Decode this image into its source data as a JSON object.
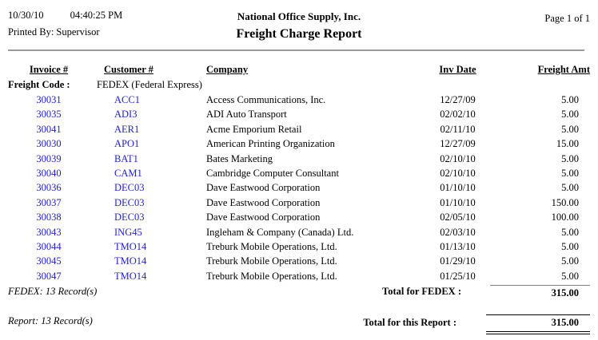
{
  "header": {
    "date": "10/30/10",
    "time": "04:40:25 PM",
    "printed_by": "Printed By: Supervisor",
    "company": "National Office Supply, Inc.",
    "title": "Freight Charge Report",
    "page": "Page 1 of 1"
  },
  "table": {
    "columns": {
      "invoice": "Invoice #",
      "customer": "Customer #",
      "company": "Company",
      "inv_date": "Inv Date",
      "freight_amt": "Freight Amt"
    },
    "group_label": "Freight Code :",
    "group_value": "FEDEX (Federal Express)",
    "rows": [
      {
        "invoice": "30031",
        "customer": "ACC1",
        "company": "Access Communications, Inc.",
        "inv_date": "12/27/09",
        "freight_amt": "5.00"
      },
      {
        "invoice": "30035",
        "customer": "ADI3",
        "company": "ADI Auto Transport",
        "inv_date": "02/02/10",
        "freight_amt": "5.00"
      },
      {
        "invoice": "30041",
        "customer": "AER1",
        "company": "Acme Emporium Retail",
        "inv_date": "02/11/10",
        "freight_amt": "5.00"
      },
      {
        "invoice": "30030",
        "customer": "APO1",
        "company": "American Printing Organization",
        "inv_date": "12/27/09",
        "freight_amt": "15.00"
      },
      {
        "invoice": "30039",
        "customer": "BAT1",
        "company": "Bates Marketing",
        "inv_date": "02/10/10",
        "freight_amt": "5.00"
      },
      {
        "invoice": "30040",
        "customer": "CAM1",
        "company": "Cambridge Computer Consultant",
        "inv_date": "02/10/10",
        "freight_amt": "5.00"
      },
      {
        "invoice": "30036",
        "customer": "DEC03",
        "company": "Dave Eastwood Corporation",
        "inv_date": "01/10/10",
        "freight_amt": "5.00"
      },
      {
        "invoice": "30037",
        "customer": "DEC03",
        "company": "Dave Eastwood Corporation",
        "inv_date": "01/10/10",
        "freight_amt": "150.00"
      },
      {
        "invoice": "30038",
        "customer": "DEC03",
        "company": "Dave Eastwood Corporation",
        "inv_date": "02/05/10",
        "freight_amt": "100.00"
      },
      {
        "invoice": "30043",
        "customer": "ING45",
        "company": "Ingleham & Company (Canada) Ltd.",
        "inv_date": "02/03/10",
        "freight_amt": "5.00"
      },
      {
        "invoice": "30044",
        "customer": "TMO14",
        "company": "Treburk Mobile Operations, Ltd.",
        "inv_date": "01/13/10",
        "freight_amt": "5.00"
      },
      {
        "invoice": "30045",
        "customer": "TMO14",
        "company": "Treburk Mobile Operations, Ltd.",
        "inv_date": "01/29/10",
        "freight_amt": "5.00"
      },
      {
        "invoice": "30047",
        "customer": "TMO14",
        "company": "Treburk Mobile Operations, Ltd.",
        "inv_date": "01/25/10",
        "freight_amt": "5.00"
      }
    ]
  },
  "summary": {
    "group_records": "FEDEX: 13 Record(s)",
    "group_total_label": "Total for FEDEX :",
    "group_total": "315.00",
    "report_records": "Report: 13 Record(s)",
    "report_total_label": "Total for this Report :",
    "report_total": "315.00"
  },
  "colors": {
    "link_blue": "#2222CC",
    "rule_gray": "#999999"
  }
}
